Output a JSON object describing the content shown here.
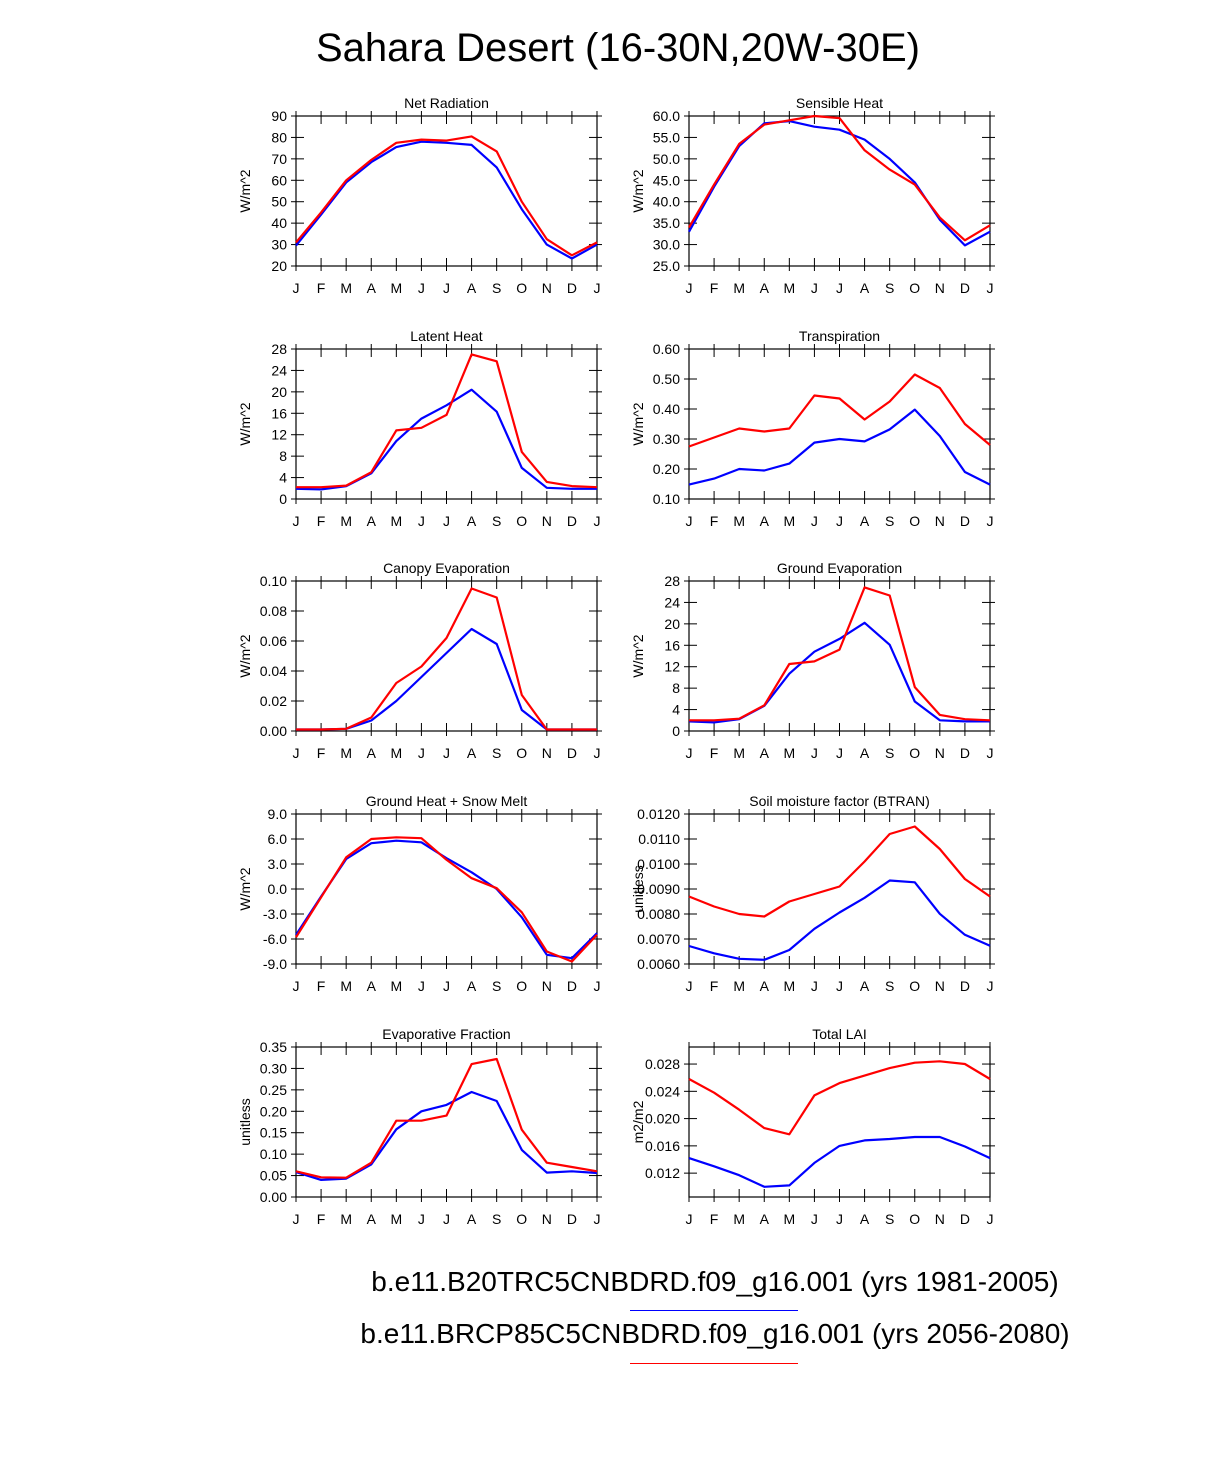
{
  "title": "Sahara Desert (16-30N,20W-30E)",
  "colors": {
    "series1": "#0000ff",
    "series2": "#ff0000"
  },
  "legend": [
    {
      "label": "b.e11.B20TRC5CNBDRD.f09_g16.001 (yrs 1981-2005)",
      "color": "#0000ff"
    },
    {
      "label": "b.e11.BRCP85C5CNBDRD.f09_g16.001 (yrs 2056-2080)",
      "color": "#ff0000"
    }
  ],
  "chart_data": [
    {
      "type": "line",
      "title": "Net Radiation",
      "ylabel": "W/m^2",
      "categories": [
        "J",
        "F",
        "M",
        "A",
        "M",
        "J",
        "J",
        "A",
        "S",
        "O",
        "N",
        "D",
        "J"
      ],
      "ylim": [
        20,
        90
      ],
      "yticks": [
        "20",
        "30",
        "40",
        "50",
        "60",
        "70",
        "80",
        "90"
      ],
      "series": [
        {
          "name": "b.e11.B20TRC5CNBDRD.f09_g16.001 (yrs 1981-2005)",
          "values": [
            29.5,
            44,
            59,
            68.5,
            75.5,
            78,
            77.5,
            76.5,
            66,
            46.5,
            30,
            23.5,
            30
          ]
        },
        {
          "name": "b.e11.BRCP85C5CNBDRD.f09_g16.001 (yrs 2056-2080)",
          "values": [
            31,
            45,
            60,
            69.5,
            77.5,
            79,
            78.5,
            80.5,
            73.5,
            50,
            32.5,
            25,
            31
          ]
        }
      ]
    },
    {
      "type": "line",
      "title": "Sensible Heat",
      "ylabel": "W/m^2",
      "categories": [
        "J",
        "F",
        "M",
        "A",
        "M",
        "J",
        "J",
        "A",
        "S",
        "O",
        "N",
        "D",
        "J"
      ],
      "ylim": [
        25,
        60
      ],
      "yticks": [
        "25.0",
        "30.0",
        "35.0",
        "40.0",
        "45.0",
        "50.0",
        "55.0",
        "60.0"
      ],
      "series": [
        {
          "name": "b.e11.B20TRC5CNBDRD.f09_g16.001 (yrs 1981-2005)",
          "values": [
            33,
            43.5,
            53,
            58.3,
            58.8,
            57.5,
            56.8,
            54.5,
            50,
            44.5,
            35.8,
            29.8,
            33
          ]
        },
        {
          "name": "b.e11.BRCP85C5CNBDRD.f09_g16.001 (yrs 2056-2080)",
          "values": [
            34,
            44,
            53.5,
            58,
            59,
            60,
            59.5,
            52,
            47.5,
            44,
            36.3,
            31,
            34.5
          ]
        }
      ]
    },
    {
      "type": "line",
      "title": "Latent Heat",
      "ylabel": "W/m^2",
      "categories": [
        "J",
        "F",
        "M",
        "A",
        "M",
        "J",
        "J",
        "A",
        "S",
        "O",
        "N",
        "D",
        "J"
      ],
      "ylim": [
        0,
        28
      ],
      "yticks": [
        "0",
        "4",
        "8",
        "12",
        "16",
        "20",
        "24",
        "28"
      ],
      "series": [
        {
          "name": "b.e11.B20TRC5CNBDRD.f09_g16.001 (yrs 1981-2005)",
          "values": [
            1.9,
            1.8,
            2.4,
            4.8,
            10.8,
            15,
            17.5,
            20.4,
            16.3,
            5.8,
            2.1,
            1.9,
            1.9
          ]
        },
        {
          "name": "b.e11.BRCP85C5CNBDRD.f09_g16.001 (yrs 2056-2080)",
          "values": [
            2.2,
            2.2,
            2.5,
            5,
            12.8,
            13.3,
            15.7,
            27,
            25.7,
            8.8,
            3.2,
            2.4,
            2.2
          ]
        }
      ]
    },
    {
      "type": "line",
      "title": "Transpiration",
      "ylabel": "W/m^2",
      "categories": [
        "J",
        "F",
        "M",
        "A",
        "M",
        "J",
        "J",
        "A",
        "S",
        "O",
        "N",
        "D",
        "J"
      ],
      "ylim": [
        0.1,
        0.6
      ],
      "yticks": [
        "0.10",
        "0.20",
        "0.30",
        "0.40",
        "0.50",
        "0.60"
      ],
      "series": [
        {
          "name": "b.e11.B20TRC5CNBDRD.f09_g16.001 (yrs 1981-2005)",
          "values": [
            0.148,
            0.168,
            0.2,
            0.195,
            0.218,
            0.288,
            0.3,
            0.292,
            0.332,
            0.398,
            0.31,
            0.19,
            0.148
          ]
        },
        {
          "name": "b.e11.BRCP85C5CNBDRD.f09_g16.001 (yrs 2056-2080)",
          "values": [
            0.275,
            0.305,
            0.335,
            0.325,
            0.335,
            0.445,
            0.435,
            0.365,
            0.425,
            0.515,
            0.47,
            0.35,
            0.28
          ]
        }
      ]
    },
    {
      "type": "line",
      "title": "Canopy Evaporation",
      "ylabel": "W/m^2",
      "categories": [
        "J",
        "F",
        "M",
        "A",
        "M",
        "J",
        "J",
        "A",
        "S",
        "O",
        "N",
        "D",
        "J"
      ],
      "ylim": [
        0,
        0.1
      ],
      "yticks": [
        "0.00",
        "0.02",
        "0.04",
        "0.06",
        "0.08",
        "0.10"
      ],
      "series": [
        {
          "name": "b.e11.B20TRC5CNBDRD.f09_g16.001 (yrs 1981-2005)",
          "values": [
            0.001,
            0.001,
            0.0015,
            0.007,
            0.02,
            0.036,
            0.052,
            0.068,
            0.058,
            0.014,
            0.001,
            0.001,
            0.001
          ]
        },
        {
          "name": "b.e11.BRCP85C5CNBDRD.f09_g16.001 (yrs 2056-2080)",
          "values": [
            0.001,
            0.001,
            0.0015,
            0.009,
            0.032,
            0.043,
            0.062,
            0.095,
            0.089,
            0.024,
            0.001,
            0.001,
            0.001
          ]
        }
      ]
    },
    {
      "type": "line",
      "title": "Ground Evaporation",
      "ylabel": "W/m^2",
      "categories": [
        "J",
        "F",
        "M",
        "A",
        "M",
        "J",
        "J",
        "A",
        "S",
        "O",
        "N",
        "D",
        "J"
      ],
      "ylim": [
        0,
        28
      ],
      "yticks": [
        "0",
        "4",
        "8",
        "12",
        "16",
        "20",
        "24",
        "28"
      ],
      "series": [
        {
          "name": "b.e11.B20TRC5CNBDRD.f09_g16.001 (yrs 1981-2005)",
          "values": [
            1.8,
            1.6,
            2.2,
            4.7,
            10.7,
            14.8,
            17.2,
            20.2,
            16.1,
            5.5,
            2,
            1.8,
            1.8
          ]
        },
        {
          "name": "b.e11.BRCP85C5CNBDRD.f09_g16.001 (yrs 2056-2080)",
          "values": [
            2,
            2,
            2.3,
            4.8,
            12.5,
            13,
            15.2,
            26.8,
            25.3,
            8.2,
            3,
            2.2,
            2
          ]
        }
      ]
    },
    {
      "type": "line",
      "title": "Ground Heat + Snow Melt",
      "ylabel": "W/m^2",
      "categories": [
        "J",
        "F",
        "M",
        "A",
        "M",
        "J",
        "J",
        "A",
        "S",
        "O",
        "N",
        "D",
        "J"
      ],
      "ylim": [
        -9,
        9
      ],
      "yticks": [
        "-9.0",
        "-6.0",
        "-3.0",
        "0.0",
        "3.0",
        "6.0",
        "9.0"
      ],
      "series": [
        {
          "name": "b.e11.B20TRC5CNBDRD.f09_g16.001 (yrs 1981-2005)",
          "values": [
            -5.5,
            -0.9,
            3.6,
            5.5,
            5.8,
            5.6,
            3.7,
            2,
            0,
            -3.4,
            -7.9,
            -8.3,
            -5.3
          ]
        },
        {
          "name": "b.e11.BRCP85C5CNBDRD.f09_g16.001 (yrs 2056-2080)",
          "values": [
            -5.8,
            -1,
            3.8,
            6,
            6.2,
            6.1,
            3.5,
            1.3,
            0.1,
            -2.8,
            -7.5,
            -8.7,
            -5.5
          ]
        }
      ]
    },
    {
      "type": "line",
      "title": "Soil moisture factor (BTRAN)",
      "ylabel": "unitless",
      "categories": [
        "J",
        "F",
        "M",
        "A",
        "M",
        "J",
        "J",
        "A",
        "S",
        "O",
        "N",
        "D",
        "J"
      ],
      "ylim": [
        0.006,
        0.012
      ],
      "yticks": [
        "0.0060",
        "0.0070",
        "0.0080",
        "0.0090",
        "0.0100",
        "0.0110",
        "0.0120"
      ],
      "series": [
        {
          "name": "b.e11.B20TRC5CNBDRD.f09_g16.001 (yrs 1981-2005)",
          "values": [
            0.00672,
            0.00643,
            0.00621,
            0.00617,
            0.00656,
            0.00741,
            0.00806,
            0.00865,
            0.00934,
            0.00927,
            0.00801,
            0.00717,
            0.00673
          ]
        },
        {
          "name": "b.e11.BRCP85C5CNBDRD.f09_g16.001 (yrs 2056-2080)",
          "values": [
            0.0087,
            0.0083,
            0.008,
            0.0079,
            0.0085,
            0.0088,
            0.0091,
            0.0101,
            0.0112,
            0.0115,
            0.0106,
            0.0094,
            0.0087
          ]
        }
      ]
    },
    {
      "type": "line",
      "title": "Evaporative Fraction",
      "ylabel": "unitless",
      "categories": [
        "J",
        "F",
        "M",
        "A",
        "M",
        "J",
        "J",
        "A",
        "S",
        "O",
        "N",
        "D",
        "J"
      ],
      "ylim": [
        0,
        0.35
      ],
      "yticks": [
        "0.00",
        "0.05",
        "0.10",
        "0.15",
        "0.20",
        "0.25",
        "0.30",
        "0.35"
      ],
      "series": [
        {
          "name": "b.e11.B20TRC5CNBDRD.f09_g16.001 (yrs 1981-2005)",
          "values": [
            0.058,
            0.04,
            0.043,
            0.076,
            0.158,
            0.2,
            0.215,
            0.245,
            0.224,
            0.11,
            0.057,
            0.06,
            0.056
          ]
        },
        {
          "name": "b.e11.BRCP85C5CNBDRD.f09_g16.001 (yrs 2056-2080)",
          "values": [
            0.06,
            0.046,
            0.045,
            0.08,
            0.178,
            0.178,
            0.19,
            0.31,
            0.322,
            0.157,
            0.08,
            0.07,
            0.06
          ]
        }
      ]
    },
    {
      "type": "line",
      "title": "Total LAI",
      "ylabel": "m2/m2",
      "categories": [
        "J",
        "F",
        "M",
        "A",
        "M",
        "J",
        "J",
        "A",
        "S",
        "O",
        "N",
        "D",
        "J"
      ],
      "ylim": [
        0.0085,
        0.0305
      ],
      "yticks": [
        "0.012",
        "0.016",
        "0.020",
        "0.024",
        "0.028"
      ],
      "ytick_values": [
        0.012,
        0.016,
        0.02,
        0.024,
        0.028
      ],
      "series": [
        {
          "name": "b.e11.B20TRC5CNBDRD.f09_g16.001 (yrs 1981-2005)",
          "values": [
            0.0142,
            0.013,
            0.0117,
            0.01,
            0.0102,
            0.0135,
            0.016,
            0.0168,
            0.017,
            0.0173,
            0.0173,
            0.0159,
            0.0142
          ]
        },
        {
          "name": "b.e11.BRCP85C5CNBDRD.f09_g16.001 (yrs 2056-2080)",
          "values": [
            0.0258,
            0.0238,
            0.0213,
            0.0186,
            0.0177,
            0.0234,
            0.0252,
            0.0263,
            0.0274,
            0.0282,
            0.0284,
            0.028,
            0.0258
          ]
        }
      ]
    }
  ]
}
